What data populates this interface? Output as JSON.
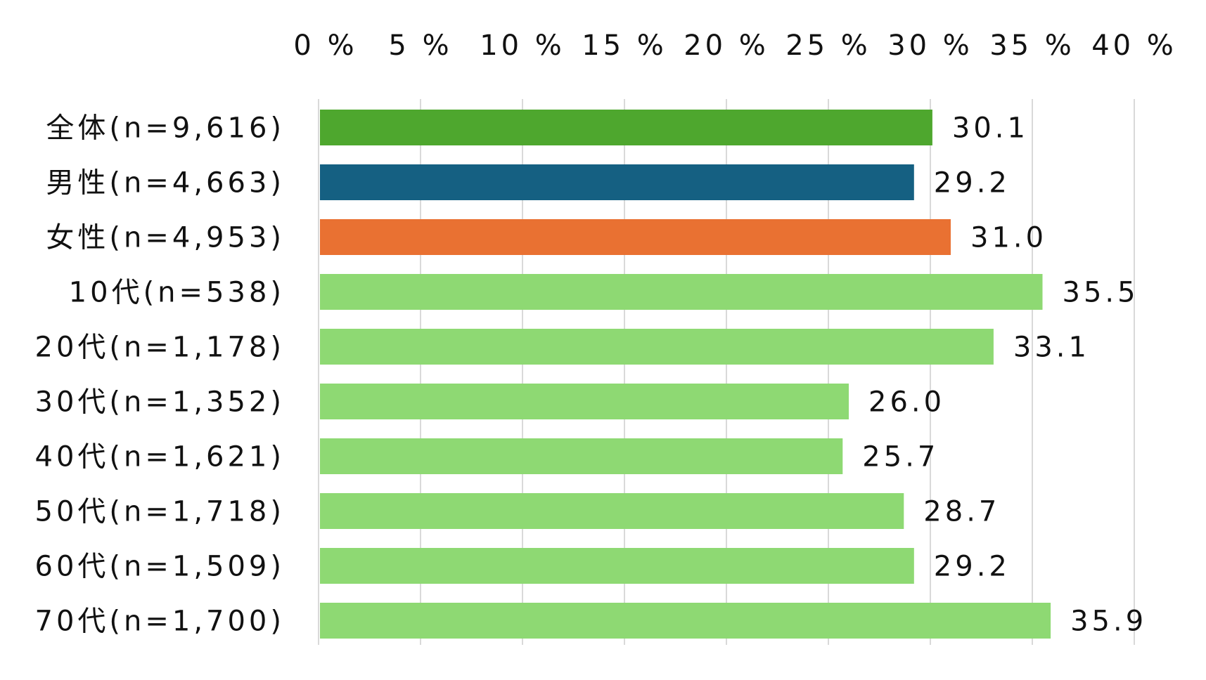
{
  "chart_data": {
    "type": "bar",
    "orientation": "horizontal",
    "categories": [
      "全体(n=9,616)",
      "男性(n=4,663)",
      "女性(n=4,953)",
      "10代(n=538)",
      "20代(n=1,178)",
      "30代(n=1,352)",
      "40代(n=1,621)",
      "50代(n=1,718)",
      "60代(n=1,509)",
      "70代(n=1,700)"
    ],
    "values": [
      30.1,
      29.2,
      31.0,
      35.5,
      33.1,
      26.0,
      25.7,
      28.7,
      29.2,
      35.9
    ],
    "value_labels": [
      "30.1",
      "29.2",
      "31.0",
      "35.5",
      "33.1",
      "26.0",
      "25.7",
      "28.7",
      "29.2",
      "35.9"
    ],
    "colors": [
      "#4EA72E",
      "#156082",
      "#E97132",
      "#8ED973",
      "#8ED973",
      "#8ED973",
      "#8ED973",
      "#8ED973",
      "#8ED973",
      "#8ED973"
    ],
    "xlim": [
      0,
      40
    ],
    "xticks": [
      0,
      5,
      10,
      15,
      20,
      25,
      30,
      35,
      40
    ],
    "xtick_labels": [
      "0 %",
      "5 %",
      "10 %",
      "15 %",
      "20 %",
      "25 %",
      "30 %",
      "35 %",
      "40 %"
    ],
    "xaxis_position": "top",
    "grid": true,
    "gridline_color": "#D9D9D9",
    "title": "",
    "xlabel": "",
    "ylabel": ""
  }
}
